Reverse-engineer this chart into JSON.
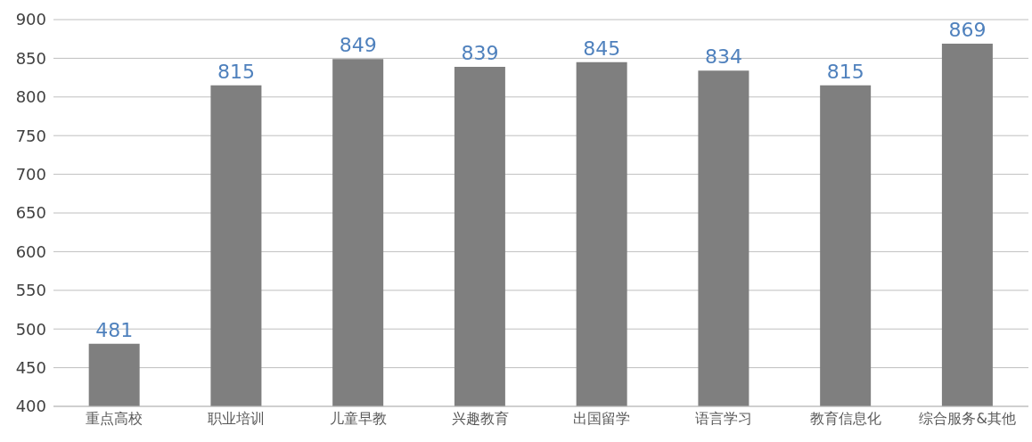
{
  "chart_data": {
    "type": "bar",
    "categories": [
      "重点高校",
      "职业培训",
      "儿童早教",
      "兴趣教育",
      "出国留学",
      "语言学习",
      "教育信息化",
      "综合服务&其他"
    ],
    "values": [
      481,
      815,
      849,
      839,
      845,
      834,
      815,
      869
    ],
    "color": "#7f7f7f",
    "ylim": [
      400,
      900
    ],
    "yticks": [
      400,
      450,
      500,
      550,
      600,
      650,
      700,
      750,
      800,
      850,
      900
    ],
    "grid": "y",
    "data_labels": true
  }
}
